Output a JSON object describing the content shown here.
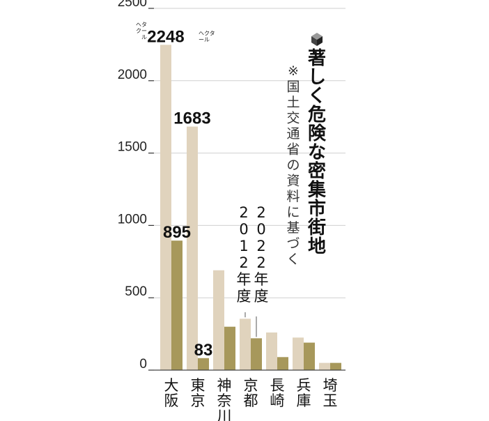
{
  "chart_data": {
    "type": "bar",
    "title": "著しく危険な密集市街地",
    "note": "※国土交通省の資料に基づく",
    "unit": "ヘクタール",
    "categories": [
      "大阪",
      "東京",
      "神奈川",
      "京都",
      "長崎",
      "兵庫",
      "埼玉"
    ],
    "series": [
      {
        "name": "2012年度",
        "color": "#e0d3bd",
        "values": [
          2248,
          1683,
          690,
          355,
          260,
          225,
          50
        ]
      },
      {
        "name": "2022年度",
        "color": "#a7985b",
        "values": [
          895,
          83,
          300,
          220,
          90,
          190,
          50
        ]
      }
    ],
    "data_labels": [
      {
        "series": 0,
        "index": 0,
        "text": "2248"
      },
      {
        "series": 0,
        "index": 1,
        "text": "1683"
      },
      {
        "series": 1,
        "index": 0,
        "text": "895"
      },
      {
        "series": 1,
        "index": 1,
        "text": "83"
      }
    ],
    "yticks": [
      0,
      500,
      1000,
      1500,
      2000,
      2500
    ],
    "ylim": [
      0,
      2500
    ],
    "legend_placement": "inside, vertical, above 京都",
    "grid": true
  }
}
